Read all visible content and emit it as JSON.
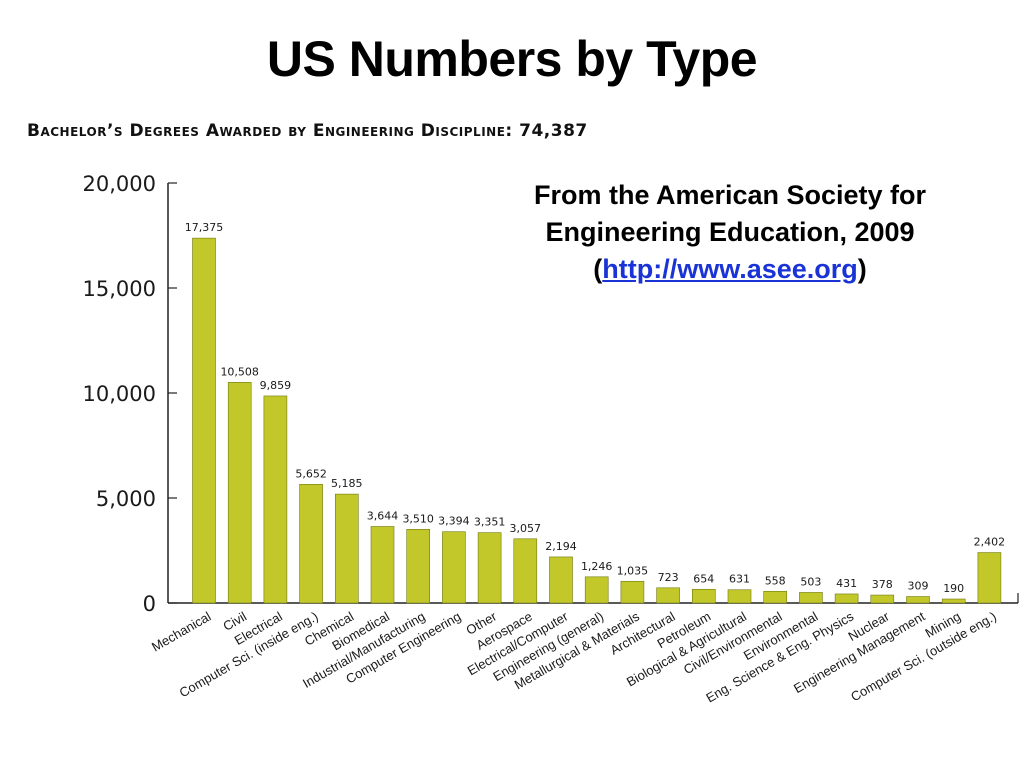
{
  "header": {
    "title": "US Numbers by Type"
  },
  "source": {
    "line1": "From the American Society for",
    "line2": "Engineering Education, 2009",
    "open_paren": "(",
    "link": "http://www.asee.org",
    "close_paren": ")"
  },
  "chart_data": {
    "type": "bar",
    "title": "Bachelor’s Degrees Awarded by Engineering Discipline: 74,387",
    "xlabel": "",
    "ylabel": "",
    "ylim": [
      0,
      20000
    ],
    "yticks": [
      0,
      5000,
      10000,
      15000,
      20000
    ],
    "ytick_labels": [
      "0",
      "5,000",
      "10,000",
      "15,000",
      "20,000"
    ],
    "grid": false,
    "bar_color": "#c2c82a",
    "bar_edge_color": "#6f7a10",
    "categories": [
      "Mechanical",
      "Civil",
      "Electrical",
      "Computer Sci. (inside eng.)",
      "Chemical",
      "Biomedical",
      "Industrial/Manufacturing",
      "Computer Engineering",
      "Other",
      "Aerospace",
      "Electrical/Computer",
      "Engineering (general)",
      "Metallurgical & Materials",
      "Architectural",
      "Petroleum",
      "Biological & Agricultural",
      "Civil/Environmental",
      "Environmental",
      "Eng. Science & Eng. Physics",
      "Nuclear",
      "Engineering Management",
      "Mining",
      "Computer Sci. (outside eng.)"
    ],
    "values": [
      17375,
      10508,
      9859,
      5652,
      5185,
      3644,
      3510,
      3394,
      3351,
      3057,
      2194,
      1246,
      1035,
      723,
      654,
      631,
      558,
      503,
      431,
      378,
      309,
      190,
      2402
    ],
    "value_labels": [
      "17,375",
      "10,508",
      "9,859",
      "5,652",
      "5,185",
      "3,644",
      "3,510",
      "3,394",
      "3,351",
      "3,057",
      "2,194",
      "1,246",
      "1,035",
      "723",
      "654",
      "631",
      "558",
      "503",
      "431",
      "378",
      "309",
      "190",
      "2,402"
    ]
  }
}
